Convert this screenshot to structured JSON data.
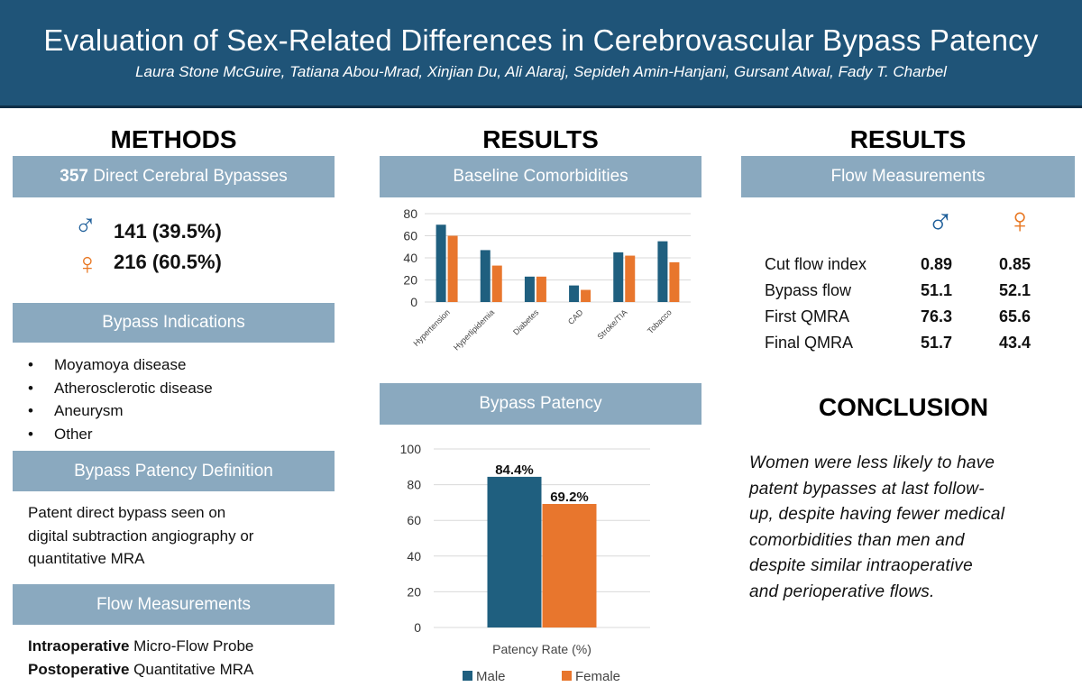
{
  "header": {
    "title": "Evaluation of Sex-Related Differences in Cerebrovascular Bypass Patency",
    "authors": "Laura Stone McGuire, Tatiana Abou-Mrad, Xinjian Du, Ali Alaraj, Sepideh Amin-Hanjani, Gursant Atwal, Fady T. Charbel"
  },
  "methods": {
    "heading": "METHODS",
    "bypass_count": "357",
    "bypass_label": " Direct Cerebral Bypasses",
    "male_stat": "141 (39.5%)",
    "female_stat": "216 (60.5%)",
    "indications_title": "Bypass Indications",
    "indications": [
      "Moyamoya disease",
      "Atherosclerotic disease",
      "Aneurysm",
      "Other"
    ],
    "patency_def_title": "Bypass Patency Definition",
    "patency_def_lines": [
      "Patent direct bypass seen on",
      "digital subtraction angiography or",
      "quantitative MRA"
    ],
    "flow_title": "Flow Measurements",
    "intraop_bold": "Intraoperative",
    "intraop_text": " Micro-Flow Probe",
    "postop_bold": "Postoperative",
    "postop_text": " Quantitative MRA"
  },
  "results_mid": {
    "heading": "RESULTS",
    "comorbid_title": "Baseline Comorbidities",
    "patency_title": "Bypass Patency"
  },
  "results_right": {
    "heading": "RESULTS",
    "flow_title": "Flow Measurements",
    "rows": [
      {
        "label": "Cut flow index",
        "male": "0.89",
        "female": "0.85"
      },
      {
        "label": "Bypass flow",
        "male": "51.1",
        "female": "52.1"
      },
      {
        "label": "First QMRA",
        "male": "76.3",
        "female": "65.6"
      },
      {
        "label": "Final QMRA",
        "male": "51.7",
        "female": "43.4"
      }
    ],
    "conclusion_heading": "CONCLUSION",
    "conclusion_lines": [
      "Women were less likely to have",
      "patent bypasses at last follow-",
      "up, despite having fewer medical",
      "comorbidities than men and",
      "despite similar intraoperative",
      "and perioperative flows."
    ]
  },
  "symbols": {
    "male": "♂",
    "female": "♀"
  },
  "colors": {
    "male": "#1f5f7f",
    "female": "#e8762d",
    "banner": "#1f5478",
    "section_bar": "#8aa9bf"
  },
  "chart_data": [
    {
      "type": "bar",
      "title": "Baseline Comorbidities",
      "categories": [
        "Hypertension",
        "Hyperlipidemia",
        "Diabetes",
        "CAD",
        "Stroke/TIA",
        "Tobacco"
      ],
      "series": [
        {
          "name": "Male",
          "values": [
            70,
            47,
            23,
            15,
            45,
            55
          ]
        },
        {
          "name": "Female",
          "values": [
            60,
            33,
            23,
            11,
            42,
            36
          ]
        }
      ],
      "yticks": [
        "0",
        "20",
        "40",
        "60",
        "80"
      ],
      "ylim": [
        0,
        80
      ],
      "xlabel": "",
      "ylabel": ""
    },
    {
      "type": "bar",
      "title": "Bypass Patency",
      "categories": [
        "Patency Rate (%)"
      ],
      "series": [
        {
          "name": "Male",
          "values": [
            84.4
          ],
          "label": "84.4%"
        },
        {
          "name": "Female",
          "values": [
            69.2
          ],
          "label": "69.2%"
        }
      ],
      "yticks": [
        "0",
        "20",
        "40",
        "60",
        "80",
        "100"
      ],
      "ylim": [
        0,
        100
      ],
      "xlabel": "Patency Rate (%)",
      "legend": [
        "Male",
        "Female"
      ]
    }
  ]
}
